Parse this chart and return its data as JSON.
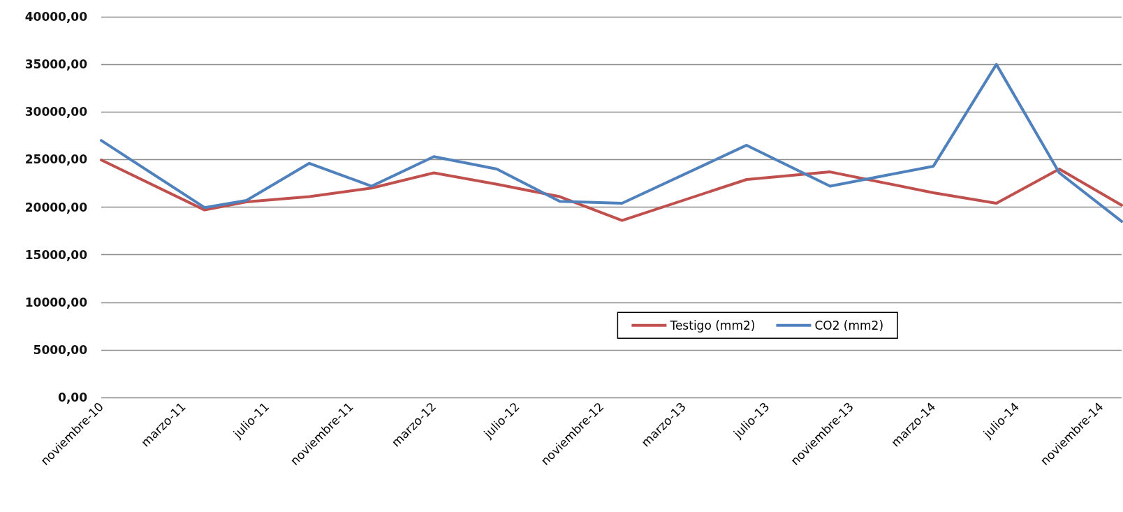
{
  "chart_data": {
    "type": "line",
    "x": [
      "2010-11",
      "2011-04",
      "2011-06",
      "2011-09",
      "2011-12",
      "2012-03",
      "2012-06",
      "2012-09",
      "2012-12",
      "2013-06",
      "2013-10",
      "2014-03",
      "2014-06",
      "2014-09",
      "2014-12"
    ],
    "series": [
      {
        "name": "Testigo (mm2)",
        "color": "#c0504d",
        "values": [
          24950,
          19700,
          20550,
          21100,
          22000,
          23600,
          22400,
          21100,
          18600,
          22900,
          23700,
          21500,
          20400,
          24000,
          20200
        ]
      },
      {
        "name": "CO2 (mm2)",
        "color": "#4f81bd",
        "values": [
          27000,
          19950,
          20700,
          24600,
          22200,
          25300,
          24000,
          20600,
          20400,
          26500,
          22200,
          24300,
          35000,
          23600,
          18500
        ]
      }
    ],
    "xlim": [
      "2010-11",
      "2014-12"
    ],
    "xticks": [
      {
        "value": "2010-11",
        "label": "noviembre-10"
      },
      {
        "value": "2011-03",
        "label": "marzo-11"
      },
      {
        "value": "2011-07",
        "label": "julio-11"
      },
      {
        "value": "2011-11",
        "label": "noviembre-11"
      },
      {
        "value": "2012-03",
        "label": "marzo-12"
      },
      {
        "value": "2012-07",
        "label": "julio-12"
      },
      {
        "value": "2012-11",
        "label": "noviembre-12"
      },
      {
        "value": "2013-03",
        "label": "marzo-13"
      },
      {
        "value": "2013-07",
        "label": "julio-13"
      },
      {
        "value": "2013-11",
        "label": "noviembre-13"
      },
      {
        "value": "2014-03",
        "label": "marzo-14"
      },
      {
        "value": "2014-07",
        "label": "julio-14"
      },
      {
        "value": "2014-11",
        "label": "noviembre-14"
      }
    ],
    "ylim": [
      0,
      40000
    ],
    "yticks": [
      {
        "value": 0,
        "label": "0,00"
      },
      {
        "value": 5000,
        "label": "5000,00"
      },
      {
        "value": 10000,
        "label": "10000,00"
      },
      {
        "value": 15000,
        "label": "15000,00"
      },
      {
        "value": 20000,
        "label": "20000,00"
      },
      {
        "value": 25000,
        "label": "25000,00"
      },
      {
        "value": 30000,
        "label": "30000,00"
      },
      {
        "value": 35000,
        "label": "35000,00"
      },
      {
        "value": 40000,
        "label": "40000,00"
      }
    ],
    "grid": "y",
    "legend": "bottom",
    "marker": "none",
    "line_style": "solid"
  }
}
